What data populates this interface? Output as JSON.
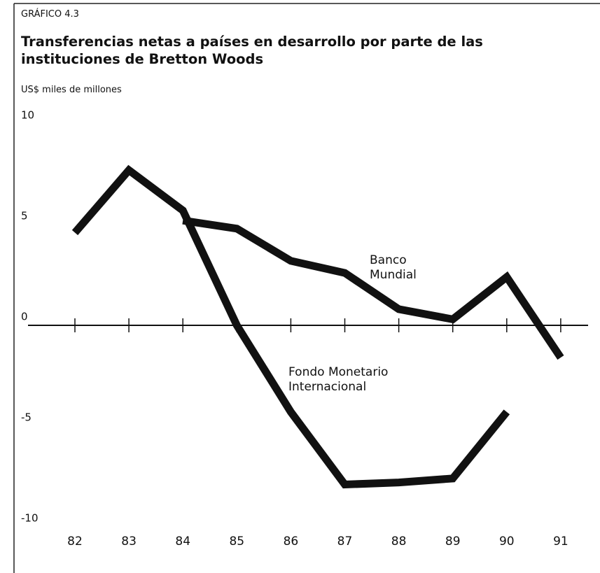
{
  "chart_data": {
    "type": "line",
    "label": "GRÁFICO 4.3",
    "title": "Transferencias netas a países en desarrollo por parte de las instituciones de Bretton Woods",
    "y_label": "US$ miles de millones",
    "categories": [
      "82",
      "83",
      "84",
      "85",
      "86",
      "87",
      "88",
      "89",
      "90",
      "91"
    ],
    "series": [
      {
        "name": "Fondo Monetario Internacional",
        "color": "#111111",
        "values": [
          4.6,
          7.7,
          5.7,
          0,
          -4.3,
          -7.9,
          -7.8,
          -7.6,
          -4.3,
          null
        ]
      },
      {
        "name": "Banco Mundial",
        "color": "#111111",
        "values": [
          null,
          null,
          5.2,
          4.8,
          3.2,
          2.6,
          0.8,
          0.3,
          2.4,
          -1.6
        ]
      }
    ],
    "ylim": [
      -10,
      10
    ],
    "yticks": [
      10,
      5,
      0,
      -5,
      -10
    ],
    "grid": false
  }
}
